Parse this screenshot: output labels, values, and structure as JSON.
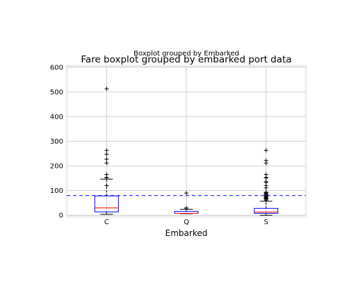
{
  "chart_data": {
    "type": "box",
    "suptitle": "Boxplot grouped by Embarked",
    "title": "Fare boxplot grouped by embarked port data",
    "xlabel": "Embarked",
    "ylabel": "",
    "ylim": [
      -5,
      605
    ],
    "yticks": [
      0,
      100,
      200,
      300,
      400,
      500,
      600
    ],
    "grid": true,
    "reference_line": {
      "value": 80,
      "style": "dashed",
      "color": "#0000ff"
    },
    "colors": {
      "box": "#0000ff",
      "median": "#ff0000",
      "whisker": "#000000",
      "flier": "#000000",
      "grid": "#cfcfcf",
      "frame": "#eeeeee"
    },
    "categories": [
      "C",
      "Q",
      "S"
    ],
    "boxes": [
      {
        "category": "C",
        "q1": 13.9,
        "median": 29.7,
        "q3": 78.5,
        "whisker_low": 4.0,
        "whisker_high": 146.5,
        "outliers": [
          512.3,
          263.0,
          247.5,
          227.5,
          211.5,
          164.9,
          153.5,
          152.0,
          120.0
        ]
      },
      {
        "category": "Q",
        "q1": 7.75,
        "median": 7.75,
        "q3": 15.5,
        "whisker_low": 6.75,
        "whisker_high": 24.0,
        "outliers": [
          90.0,
          29.1,
          29.1,
          29.1,
          29.1,
          29.1
        ]
      },
      {
        "category": "S",
        "q1": 8.05,
        "median": 13.0,
        "q3": 27.9,
        "whisker_low": 0.0,
        "whisker_high": 56.9,
        "outliers": [
          263.0,
          221.8,
          211.3,
          164.9,
          153.5,
          151.6,
          135.6,
          133.7,
          120.0,
          110.9,
          93.5,
          91.1,
          90.0,
          86.5,
          83.2,
          79.7,
          77.3,
          76.7,
          73.5,
          71.0,
          69.6,
          69.5,
          66.6,
          65.0,
          61.2
        ]
      }
    ]
  }
}
